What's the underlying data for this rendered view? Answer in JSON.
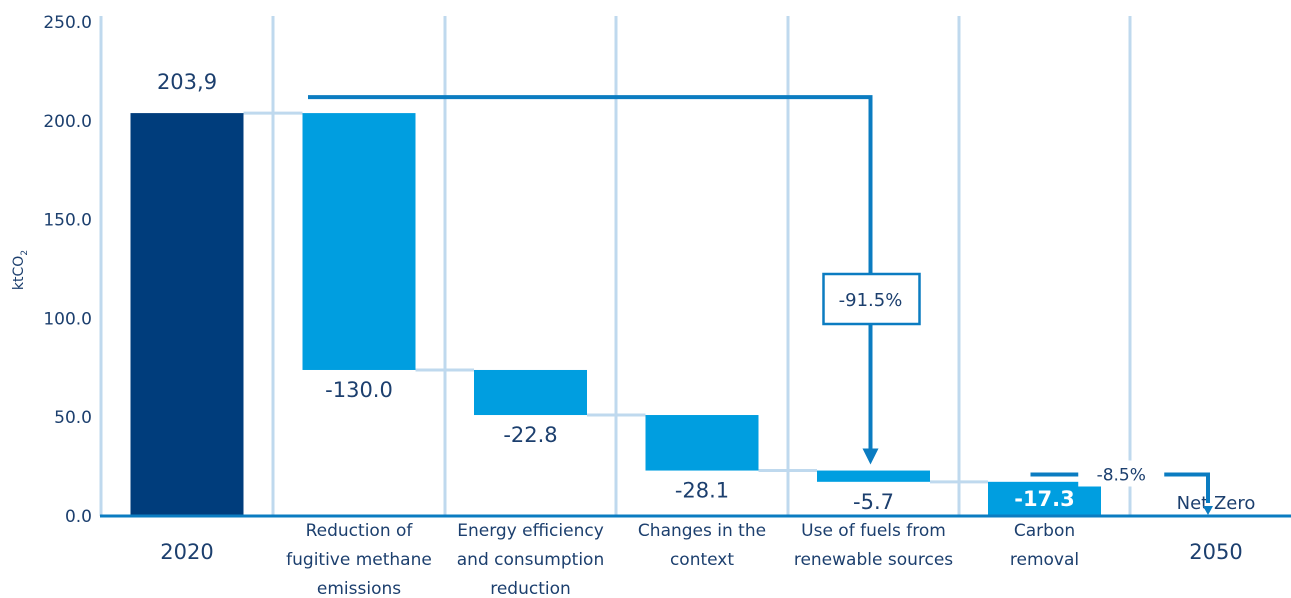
{
  "chart_data": {
    "type": "bar",
    "subtype": "waterfall",
    "ylabel": "ktCO",
    "ylabel_subscript": "2",
    "ylim": [
      0,
      250
    ],
    "y_ticks": [
      "0.0",
      "50.0",
      "100.0",
      "150.0",
      "200.0",
      "250.0"
    ],
    "grid": "vertical",
    "categories": [
      {
        "lines": [
          "2020"
        ],
        "big": true
      },
      {
        "lines": [
          "Reduction of",
          "fugitive methane",
          "emissions"
        ]
      },
      {
        "lines": [
          "Energy efficiency",
          "and consumption",
          "reduction"
        ]
      },
      {
        "lines": [
          "Changes in the",
          "context"
        ]
      },
      {
        "lines": [
          "Use of fuels from",
          "renewable sources"
        ]
      },
      {
        "lines": [
          "Carbon",
          "removal"
        ]
      },
      {
        "lines": [
          "2050"
        ],
        "big": true
      }
    ],
    "bars": [
      {
        "kind": "total",
        "start": 0,
        "end": 203.9,
        "label": "203,9"
      },
      {
        "kind": "delta",
        "start": 203.9,
        "end": 73.9,
        "label": "-130.0"
      },
      {
        "kind": "delta",
        "start": 73.9,
        "end": 51.1,
        "label": "-22.8"
      },
      {
        "kind": "delta",
        "start": 51.1,
        "end": 23.0,
        "label": "-28.1"
      },
      {
        "kind": "delta",
        "start": 23.0,
        "end": 17.3,
        "label": "-5.7"
      },
      {
        "kind": "removal",
        "start": 0,
        "end": 17.3,
        "label": "-17.3"
      },
      {
        "kind": "total",
        "start": 0,
        "end": 0,
        "label": "Net Zero"
      }
    ],
    "annotations": [
      {
        "label": "-91.5%",
        "from_category": 1,
        "to_category": 4,
        "level": 212
      },
      {
        "label": "-8.5%",
        "from_category": 5,
        "to_category": 6,
        "level": 21
      }
    ],
    "colors": {
      "total": "#003d7c",
      "delta": "#009ee0",
      "grid": "#bfd9ee",
      "connector": "#bfd9ee",
      "arrow": "#0b7cc1",
      "axis": "#0b7cc1",
      "text": "#1c3f6e"
    }
  }
}
